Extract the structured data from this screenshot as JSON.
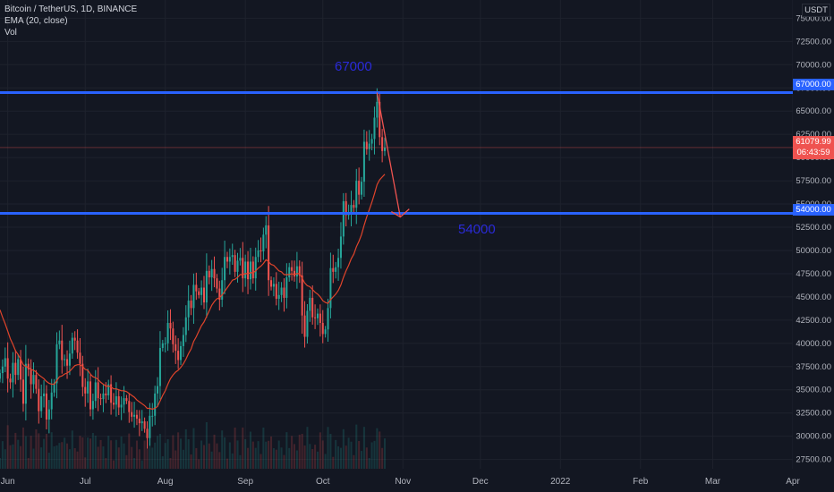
{
  "header": {
    "symbol": "Bitcoin / TetherUS, 1D, BINANCE",
    "indicator_ema": "EMA (20, close)",
    "indicator_vol": "Vol",
    "currency": "USDT"
  },
  "annotations": {
    "top_level_label": "67000",
    "bottom_level_label": "54000"
  },
  "price_tags": {
    "resistance": "67000.00",
    "support": "54000.00",
    "last_price": "61079.99",
    "countdown": "06:43:59"
  },
  "colors": {
    "background": "#131722",
    "up": "#26a69a",
    "down": "#ef5350",
    "ema": "#e0442b",
    "level_line": "#2962ff",
    "arrow": "#ef5350",
    "annotation_text": "#2a2ad8"
  },
  "chart_data": {
    "type": "candlestick",
    "title": "Bitcoin / TetherUS, 1D, BINANCE",
    "y_axis": {
      "ticks": [
        27500,
        30000,
        32500,
        35000,
        37500,
        40000,
        42500,
        45000,
        47500,
        50000,
        52500,
        55000,
        57500,
        60000,
        62500,
        65000,
        67500,
        70000,
        72500,
        75000
      ],
      "tick_labels": [
        "27500.00",
        "30000.00",
        "32500.00",
        "35000.00",
        "37500.00",
        "40000.00",
        "42500.00",
        "45000.00",
        "47500.00",
        "50000.00",
        "52500.00",
        "55000.00",
        "57500.00",
        "60000.00",
        "62500.00",
        "65000.00",
        "67500.00",
        "70000.00",
        "72500.00",
        "75000.00"
      ],
      "range": [
        26500,
        76000
      ]
    },
    "x_axis": {
      "tick_labels": [
        "Jun",
        "Jul",
        "Aug",
        "Sep",
        "Oct",
        "Nov",
        "Dec",
        "2022",
        "Feb",
        "Mar",
        "Apr"
      ],
      "tick_dates": [
        "2021-06-01",
        "2021-07-01",
        "2021-08-01",
        "2021-09-01",
        "2021-10-01",
        "2021-11-01",
        "2021-12-01",
        "2022-01-01",
        "2022-02-01",
        "2022-03-01",
        "2022-04-01"
      ],
      "range": [
        "2021-05-29",
        "2022-04-01"
      ]
    },
    "horizontal_levels": [
      {
        "value": 67000,
        "label": "67000"
      },
      {
        "value": 54000,
        "label": "54000"
      }
    ],
    "last_price_line": 61080,
    "arrow": {
      "from": {
        "date": "2021-10-22",
        "price": 67000
      },
      "to": {
        "date": "2021-10-31",
        "price": 53600
      }
    },
    "closes": [
      36800,
      37500,
      38400,
      36200,
      35800,
      37900,
      36600,
      38300,
      36100,
      33500,
      37800,
      37200,
      35600,
      36600,
      35100,
      32700,
      34300,
      34600,
      31800,
      32900,
      34700,
      35700,
      39900,
      40300,
      38200,
      38300,
      37600,
      38900,
      40600,
      40300,
      39000,
      37800,
      35300,
      34600,
      35900,
      32900,
      33800,
      35800,
      34100,
      34000,
      34600,
      34400,
      35600,
      33600,
      33400,
      34300,
      33100,
      33400,
      34100,
      33800,
      32600,
      32100,
      32300,
      31900,
      31400,
      31600,
      30800,
      29800,
      32200,
      32200,
      34600,
      35400,
      39500,
      40000,
      40000,
      42200,
      41600,
      39900,
      39200,
      38200,
      39700,
      40900,
      42800,
      44600,
      43800,
      46300,
      45600,
      45200,
      46000,
      44400,
      47800,
      47100,
      48000,
      47000,
      45900,
      44700,
      46800,
      49300,
      48800,
      49300,
      49500,
      47700,
      48900,
      49200,
      47000,
      48800,
      46900,
      48800,
      47000,
      49300,
      50000,
      49900,
      51700,
      52700,
      46800,
      46100,
      46400,
      44800,
      45200,
      46000,
      44900,
      47100,
      48200,
      47800,
      47200,
      48300,
      47300,
      43000,
      40700,
      43500,
      44900,
      42800,
      42700,
      43200,
      42200,
      41000,
      41500,
      43800,
      48100,
      47700,
      48200,
      49200,
      51500,
      55300,
      53800,
      53900,
      54900,
      54600,
      57500,
      56000,
      57400,
      61700,
      60900,
      61500,
      62000,
      64300,
      66000,
      62200,
      60700,
      61080
    ],
    "ema20": [
      43600,
      42800,
      42100,
      41300,
      40500,
      39900,
      39200,
      38800,
      38300,
      37700,
      37500,
      37400,
      37200,
      37100,
      36900,
      36600,
      36400,
      36200,
      35900,
      35700,
      35600,
      35600,
      36000,
      36400,
      36500,
      36700,
      36800,
      37000,
      37300,
      37600,
      37700,
      37700,
      37500,
      37200,
      37100,
      36700,
      36400,
      36300,
      36100,
      35800,
      35600,
      35400,
      35400,
      35300,
      35100,
      35100,
      35000,
      34900,
      34900,
      34800,
      34600,
      34400,
      34200,
      33900,
      33700,
      33500,
      33300,
      33000,
      33000,
      32900,
      33000,
      33200,
      33800,
      34400,
      34900,
      35600,
      36200,
      36600,
      36900,
      37100,
      37400,
      37800,
      38300,
      38900,
      39400,
      40200,
      40700,
      41300,
      41900,
      42300,
      42900,
      43500,
      44100,
      44500,
      44800,
      44900,
      45200,
      45600,
      46000,
      46400,
      46800,
      46900,
      47100,
      47400,
      47400,
      47500,
      47500,
      47600,
      47600,
      47800,
      48100,
      48300,
      48600,
      49000,
      48800,
      48500,
      48400,
      48100,
      47800,
      47700,
      47400,
      47400,
      47400,
      47500,
      47400,
      47500,
      47500,
      47000,
      46500,
      46200,
      46100,
      45800,
      45500,
      45300,
      45000,
      44600,
      44400,
      44300,
      44700,
      45000,
      45300,
      45700,
      46300,
      47100,
      47800,
      48400,
      49100,
      49600,
      50400,
      51000,
      51700,
      52700,
      53600,
      54400,
      55200,
      56100,
      57100,
      57600,
      57900,
      58200
    ],
    "volume_note": "volume histogram"
  }
}
